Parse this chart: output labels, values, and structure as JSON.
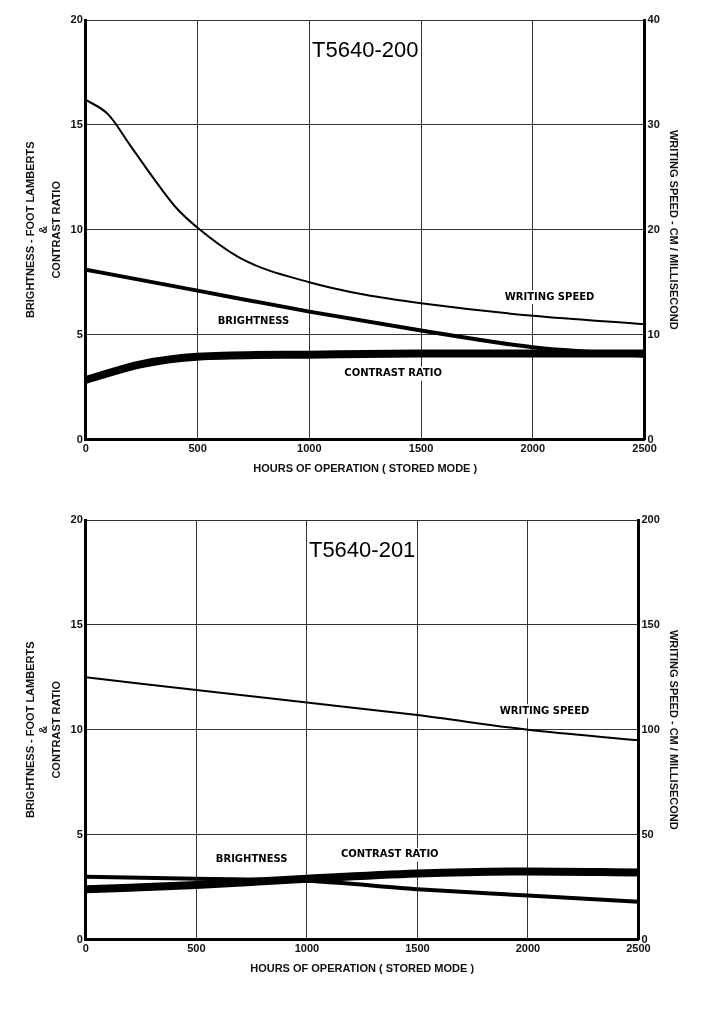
{
  "chart_data": [
    {
      "type": "line",
      "title": "T5640-200",
      "xlabel": "HOURS OF OPERATION ( STORED MODE )",
      "ylabel": "BRIGHTNESS - FOOT LAMBERTS\n&\nCONTRAST RATIO",
      "y2label": "WRITING SPEED - CM / MILLISECOND",
      "xlim": [
        0,
        2500
      ],
      "xticks": [
        0,
        500,
        1000,
        1500,
        2000,
        2500
      ],
      "ylim": [
        0,
        20
      ],
      "yticks": [
        0,
        5,
        10,
        15,
        20
      ],
      "y2lim": [
        0,
        40
      ],
      "y2ticks": [
        0,
        10,
        20,
        30,
        40
      ],
      "grid": true,
      "legend": false,
      "marker": "none",
      "series": [
        {
          "name": "WRITING SPEED",
          "color": "#000000",
          "axis": "y2",
          "x": [
            0,
            100,
            200,
            300,
            400,
            500,
            700,
            1000,
            1250,
            1500,
            2000,
            2500
          ],
          "values": [
            32.4,
            31,
            28,
            25,
            22.2,
            20.2,
            17.2,
            15,
            13.8,
            13,
            11.8,
            11
          ]
        },
        {
          "name": "BRIGHTNESS",
          "color": "#000000",
          "x": [
            0,
            500,
            1000,
            1500,
            2000,
            2500
          ],
          "values": [
            8.1,
            7.1,
            6.1,
            5.2,
            4.4,
            4.0
          ]
        },
        {
          "name": "CONTRAST RATIO",
          "color": "#000000",
          "x": [
            0,
            250,
            500,
            1000,
            1500,
            2000,
            2500
          ],
          "values": [
            2.85,
            3.6,
            3.95,
            4.05,
            4.1,
            4.1,
            4.1
          ]
        }
      ]
    },
    {
      "type": "line",
      "title": "T5640-201",
      "xlabel": "HOURS OF OPERATION ( STORED MODE )",
      "ylabel": "BRIGHTNESS - FOOT LAMBERTS\n&\nCONTRAST RATIO",
      "y2label": "WRITING SPEED - CM / MILLISECOND",
      "xlim": [
        0,
        2500
      ],
      "xticks": [
        0,
        500,
        1000,
        1500,
        2000,
        2500
      ],
      "ylim": [
        0,
        20
      ],
      "yticks": [
        0,
        5,
        10,
        15,
        20
      ],
      "y2lim": [
        0,
        200
      ],
      "y2ticks": [
        0,
        50,
        100,
        150,
        200
      ],
      "grid": true,
      "legend": false,
      "marker": "none",
      "series": [
        {
          "name": "WRITING SPEED",
          "color": "#000000",
          "axis": "y2",
          "x": [
            0,
            500,
            1000,
            1500,
            2000,
            2500
          ],
          "values": [
            125,
            119,
            113,
            107,
            100,
            95
          ]
        },
        {
          "name": "BRIGHTNESS",
          "color": "#000000",
          "x": [
            0,
            500,
            1000,
            1500,
            2000,
            2500
          ],
          "values": [
            3.0,
            2.9,
            2.8,
            2.4,
            2.1,
            1.8
          ]
        },
        {
          "name": "CONTRAST RATIO",
          "color": "#000000",
          "x": [
            0,
            500,
            1000,
            1500,
            2000,
            2500
          ],
          "values": [
            2.4,
            2.6,
            2.9,
            3.15,
            3.25,
            3.2
          ]
        }
      ]
    }
  ]
}
